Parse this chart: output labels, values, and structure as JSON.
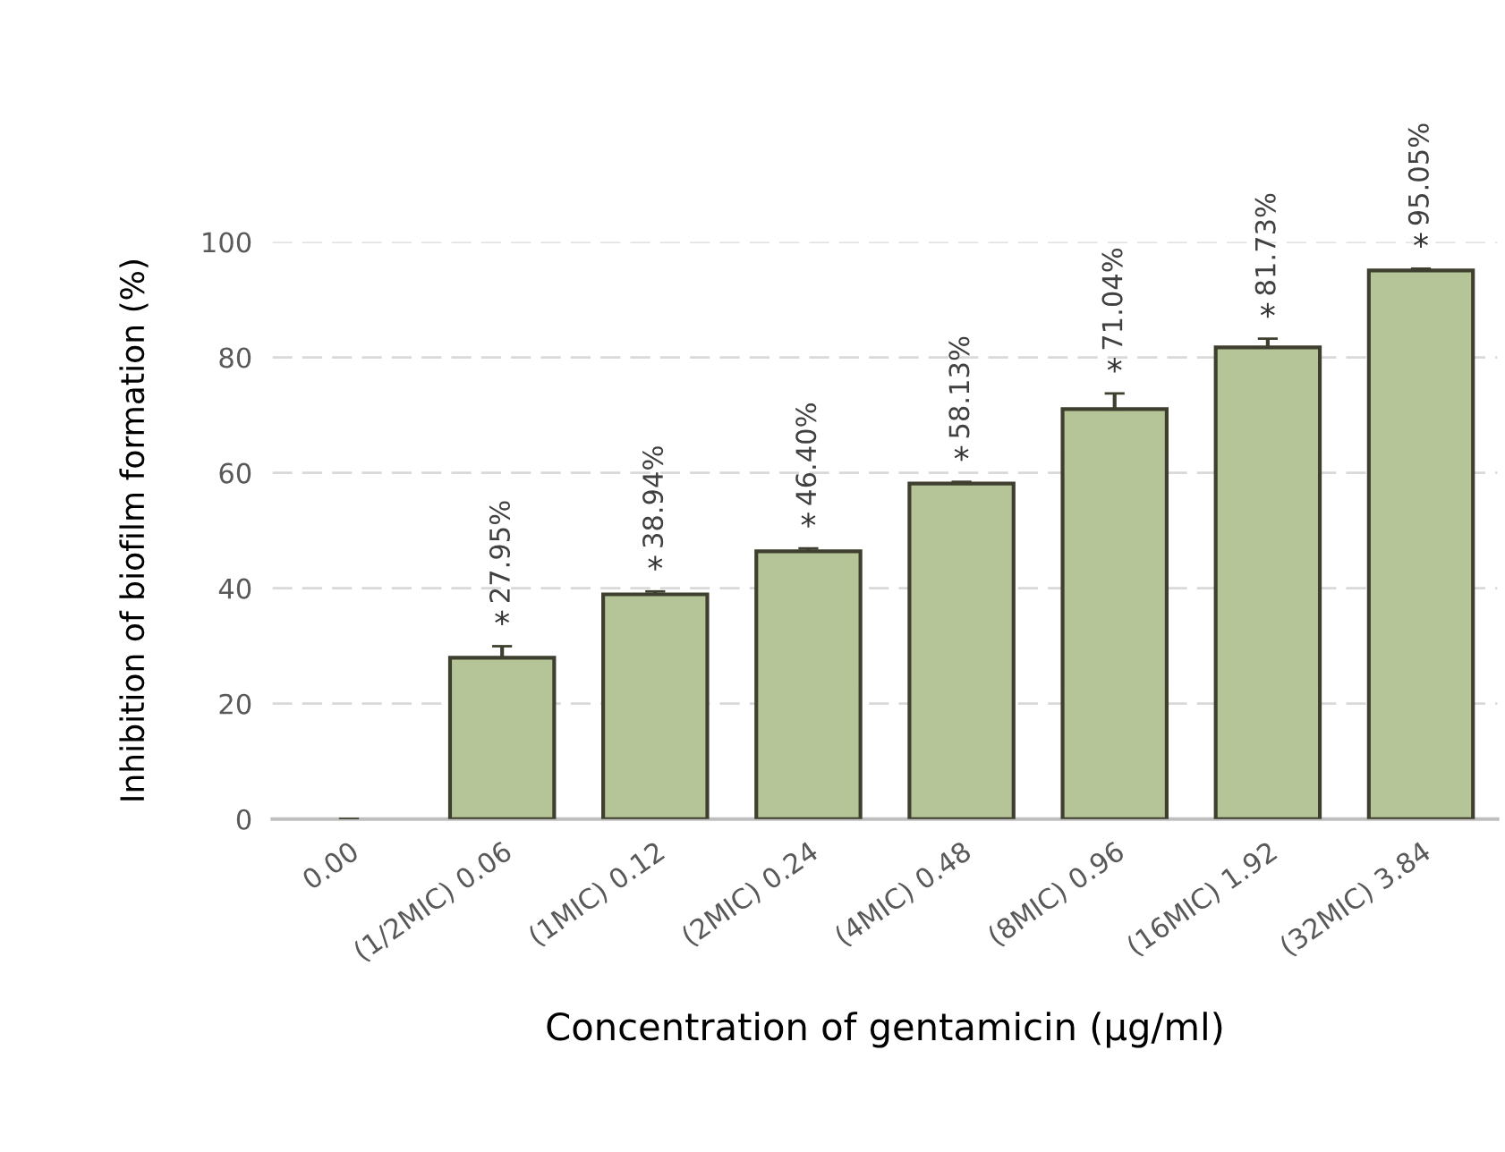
{
  "chart_data": {
    "type": "bar",
    "xlabel": "Concentration of gentamicin (µg/ml)",
    "ylabel": "Inhibition of biofilm formation (%)",
    "categories": [
      "0.00",
      "(1/2MIC) 0.06",
      "(1MIC) 0.12",
      "(2MIC) 0.24",
      "(4MIC) 0.48",
      "(8MIC) 0.96",
      "(16MIC) 1.92",
      "(32MIC) 3.84"
    ],
    "values": [
      0,
      27.95,
      38.94,
      46.4,
      58.13,
      71.04,
      81.73,
      95.05
    ],
    "errors": [
      null,
      2,
      0.5,
      0.5,
      0.3,
      2.7,
      1.5,
      0.3
    ],
    "value_labels": [
      null,
      "27.95%",
      "38.94%",
      "46.40%",
      "58.13%",
      "71.04%",
      "81.73%",
      "95.05%"
    ],
    "color": "#b5c597",
    "annotations": [
      {
        "text": "*",
        "x": "(1/2MIC) 0.06",
        "y": 27.95
      },
      {
        "text": "*",
        "x": "(1MIC) 0.12",
        "y": 38.94
      },
      {
        "text": "*",
        "x": "(2MIC) 0.24",
        "y": 46.4
      },
      {
        "text": "*",
        "x": "(4MIC) 0.48",
        "y": 58.13
      },
      {
        "text": "*",
        "x": "(8MIC) 0.96",
        "y": 71.04
      },
      {
        "text": "*",
        "x": "(16MIC) 1.92",
        "y": 81.73
      },
      {
        "text": "*",
        "x": "(32MIC) 3.84",
        "y": 95.05
      }
    ],
    "ylim": [
      0,
      100
    ],
    "yticks": [
      0,
      20,
      40,
      60,
      80,
      100
    ],
    "grid": "y",
    "legend": false
  }
}
